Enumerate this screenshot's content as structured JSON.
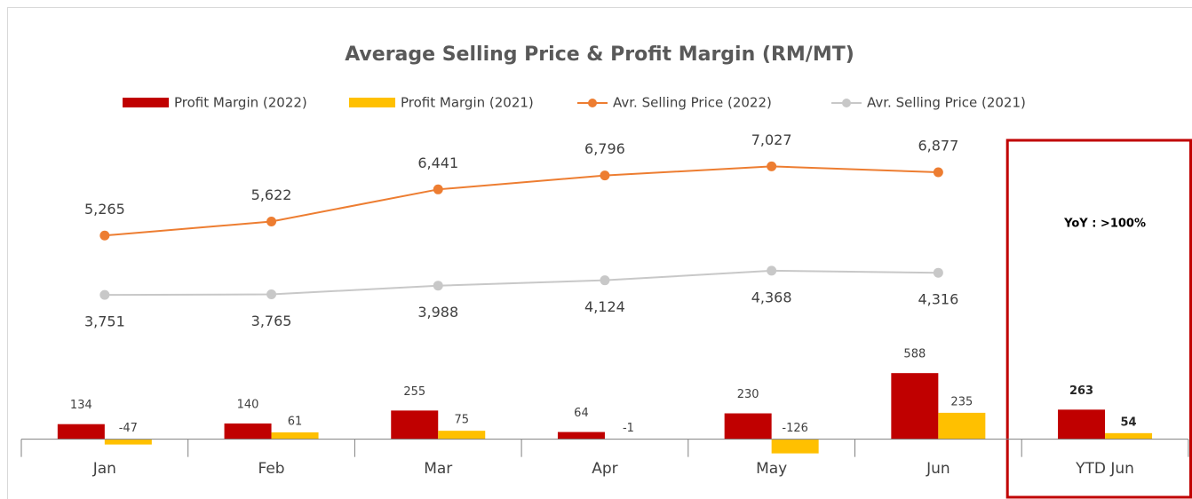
{
  "chart_data": {
    "type": "combo",
    "title": "Average Selling Price & Profit Margin (RM/MT)",
    "categories": [
      "Jan",
      "Feb",
      "Mar",
      "Apr",
      "May",
      "Jun",
      "YTD Jun"
    ],
    "series": [
      {
        "name": "Profit Margin (2022)",
        "type": "bar",
        "color": "#c00000",
        "values": [
          134,
          140,
          255,
          64,
          230,
          588,
          263
        ]
      },
      {
        "name": "Profit Margin (2021)",
        "type": "bar",
        "color": "#ffc000",
        "values": [
          -47,
          61,
          75,
          -1,
          -126,
          235,
          54
        ]
      },
      {
        "name": "Avr. Selling Price (2022)",
        "type": "line",
        "axis": "y2",
        "color": "#ed7d31",
        "values": [
          5265,
          5622,
          6441,
          6796,
          7027,
          6877,
          null
        ],
        "value_labels": [
          "5,265",
          "5,622",
          "6,441",
          "6,796",
          "7,027",
          "6,877",
          null
        ]
      },
      {
        "name": "Avr. Selling Price (2021)",
        "type": "line",
        "axis": "y2",
        "color": "#c8c8c8",
        "values": [
          3751,
          3765,
          3988,
          4124,
          4368,
          4316,
          null
        ],
        "value_labels": [
          "3,751",
          "3,765",
          "3,988",
          "4,124",
          "4,368",
          "4,316",
          null
        ]
      }
    ],
    "ylim": [
      -200,
      2800
    ],
    "y2lim": [
      -500,
      8100
    ],
    "annotation": "YoY : >100%",
    "highlight_color": "#c00000"
  }
}
